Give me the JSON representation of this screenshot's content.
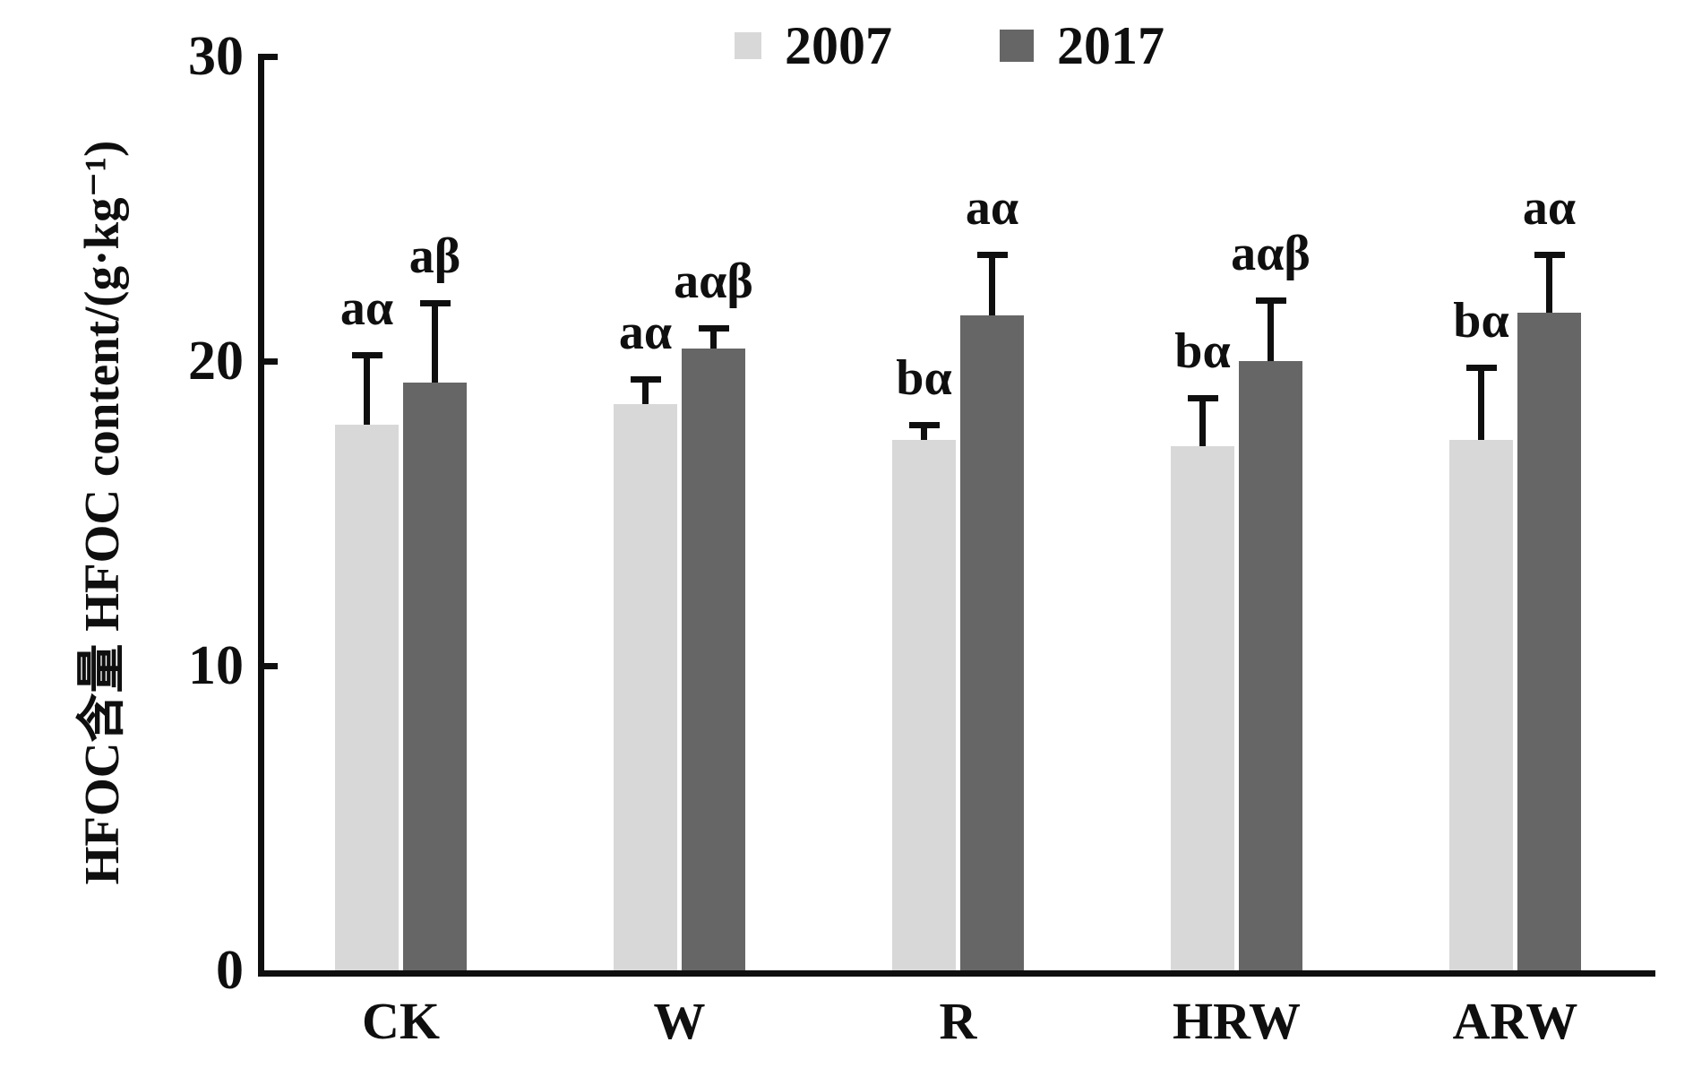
{
  "figure": {
    "y_axis_title": "HFOC含量 HFOC content/(g·kg⁻¹)"
  },
  "legend": {
    "items": [
      {
        "label": "2007",
        "color": "#d8d8d8"
      },
      {
        "label": "2017",
        "color": "#666666"
      }
    ]
  },
  "chart_data": {
    "type": "bar",
    "title": "",
    "xlabel": "",
    "ylabel": "HFOC含量 HFOC content/(g·kg⁻¹)",
    "categories": [
      "CK",
      "W",
      "R",
      "HRW",
      "ARW"
    ],
    "series": [
      {
        "name": "2007",
        "color": "#d8d8d8",
        "values": [
          17.9,
          18.6,
          17.4,
          17.2,
          17.4
        ],
        "errors": [
          2.3,
          0.8,
          0.5,
          1.6,
          2.4
        ],
        "sig_labels": [
          "aα",
          "aα",
          "bα",
          "bα",
          "bα"
        ]
      },
      {
        "name": "2017",
        "color": "#666666",
        "values": [
          19.3,
          20.4,
          21.5,
          20.0,
          21.6
        ],
        "errors": [
          2.6,
          0.7,
          2.0,
          2.0,
          1.9
        ],
        "sig_labels": [
          "aβ",
          "aαβ",
          "aα",
          "aαβ",
          "aα"
        ]
      }
    ],
    "ylim": [
      0,
      30
    ],
    "yticks": [
      0,
      10,
      20,
      30
    ],
    "grid": false,
    "legend_position": "top-center",
    "error_bars": "upper-only",
    "axis_color": "#0f0f0f"
  }
}
